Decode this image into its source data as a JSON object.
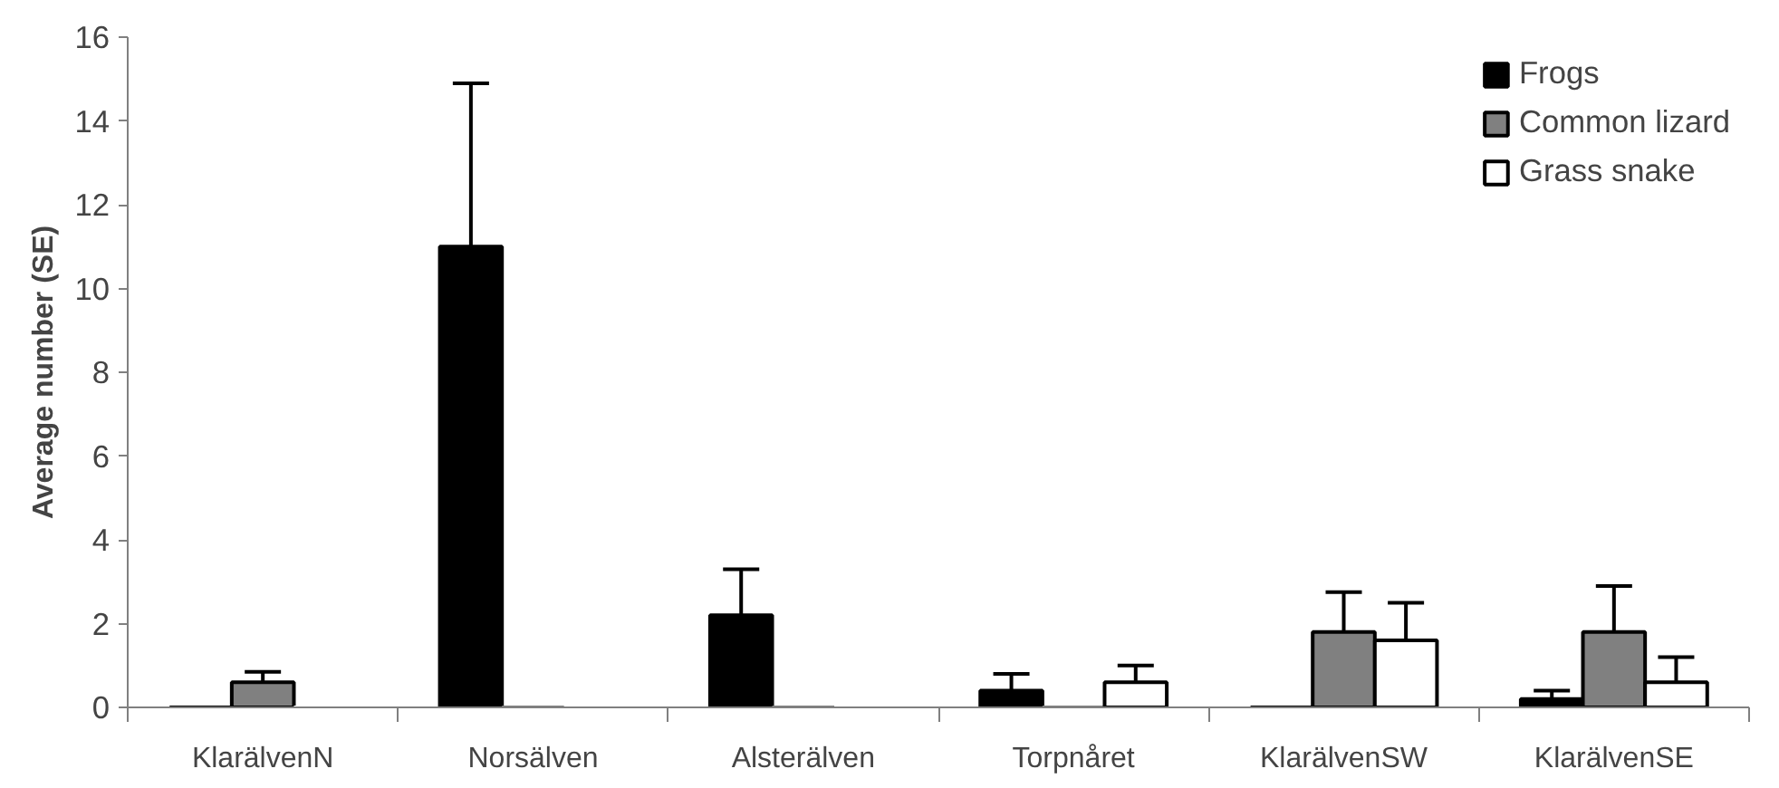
{
  "chart_data": {
    "type": "bar",
    "ylabel": "Average number (SE)",
    "categories": [
      "KlarälvenN",
      "Norsälven",
      "Alsterälven",
      "Torpnåret",
      "KlarälvenSW",
      "KlarälvenSE"
    ],
    "series": [
      {
        "name": "Frogs",
        "color": "#000000",
        "values": [
          0,
          11,
          2.2,
          0.4,
          0,
          0.2
        ],
        "errors": [
          null,
          3.9,
          1.1,
          0.4,
          null,
          0.2
        ]
      },
      {
        "name": "Common lizard",
        "color": "#808080",
        "values": [
          0.6,
          0,
          0,
          0,
          1.8,
          1.8
        ],
        "errors": [
          0.25,
          null,
          null,
          null,
          0.95,
          1.1
        ]
      },
      {
        "name": "Grass snake",
        "color": "#ffffff",
        "values": [
          0,
          0,
          0,
          0.6,
          1.6,
          0.6
        ],
        "errors": [
          null,
          null,
          null,
          0.4,
          0.9,
          0.6
        ]
      }
    ],
    "ylim": [
      0,
      16
    ],
    "yticks": [
      0,
      2,
      4,
      6,
      8,
      10,
      12,
      14,
      16
    ],
    "grid": false,
    "legend": "top right"
  }
}
